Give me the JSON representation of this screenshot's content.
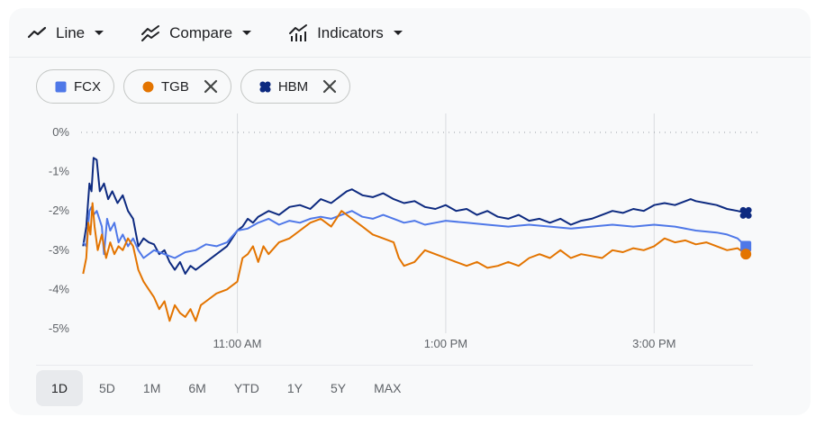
{
  "toolbar": {
    "line_label": "Line",
    "compare_label": "Compare",
    "indicators_label": "Indicators"
  },
  "chips": [
    {
      "symbol": "FCX",
      "color": "#4f78e8",
      "shape": "square",
      "removable": false
    },
    {
      "symbol": "TGB",
      "color": "#e37400",
      "shape": "circle",
      "removable": true
    },
    {
      "symbol": "HBM",
      "color": "#0d2a80",
      "shape": "clover",
      "removable": true
    }
  ],
  "ranges": [
    "1D",
    "5D",
    "1M",
    "6M",
    "YTD",
    "1Y",
    "5Y",
    "MAX"
  ],
  "active_range": "1D",
  "chart_data": {
    "type": "line",
    "x_unit": "hours",
    "x_range": [
      9.5,
      16
    ],
    "ylim": [
      -5,
      0
    ],
    "y_ticks": [
      0,
      -1,
      -2,
      -3,
      -4,
      -5
    ],
    "y_tick_labels": [
      "0%",
      "-1%",
      "-2%",
      "-3%",
      "-4%",
      "-5%"
    ],
    "x_ticks": [
      11,
      13,
      15
    ],
    "x_tick_labels": [
      "11:00 AM",
      "1:00 PM",
      "3:00 PM"
    ],
    "baseline": 0,
    "series": [
      {
        "name": "HBM",
        "color": "#0d2a80",
        "points": [
          [
            9.52,
            -2.9
          ],
          [
            9.55,
            -2.4
          ],
          [
            9.58,
            -1.3
          ],
          [
            9.6,
            -1.5
          ],
          [
            9.62,
            -0.65
          ],
          [
            9.65,
            -0.7
          ],
          [
            9.68,
            -1.5
          ],
          [
            9.72,
            -1.3
          ],
          [
            9.76,
            -1.7
          ],
          [
            9.8,
            -1.5
          ],
          [
            9.85,
            -1.8
          ],
          [
            9.9,
            -1.6
          ],
          [
            9.95,
            -2.0
          ],
          [
            10.0,
            -2.2
          ],
          [
            10.05,
            -2.9
          ],
          [
            10.1,
            -2.7
          ],
          [
            10.15,
            -2.8
          ],
          [
            10.2,
            -2.85
          ],
          [
            10.25,
            -3.1
          ],
          [
            10.3,
            -3.0
          ],
          [
            10.35,
            -3.3
          ],
          [
            10.4,
            -3.5
          ],
          [
            10.45,
            -3.3
          ],
          [
            10.5,
            -3.6
          ],
          [
            10.55,
            -3.4
          ],
          [
            10.6,
            -3.5
          ],
          [
            10.7,
            -3.3
          ],
          [
            10.8,
            -3.1
          ],
          [
            10.9,
            -2.9
          ],
          [
            10.95,
            -2.7
          ],
          [
            11.0,
            -2.5
          ],
          [
            11.05,
            -2.4
          ],
          [
            11.1,
            -2.2
          ],
          [
            11.15,
            -2.3
          ],
          [
            11.2,
            -2.15
          ],
          [
            11.3,
            -2.0
          ],
          [
            11.4,
            -2.1
          ],
          [
            11.5,
            -1.9
          ],
          [
            11.6,
            -1.85
          ],
          [
            11.7,
            -1.95
          ],
          [
            11.8,
            -1.7
          ],
          [
            11.9,
            -1.8
          ],
          [
            12.0,
            -1.6
          ],
          [
            12.05,
            -1.5
          ],
          [
            12.1,
            -1.45
          ],
          [
            12.2,
            -1.6
          ],
          [
            12.3,
            -1.65
          ],
          [
            12.4,
            -1.55
          ],
          [
            12.5,
            -1.7
          ],
          [
            12.6,
            -1.8
          ],
          [
            12.7,
            -1.75
          ],
          [
            12.8,
            -1.9
          ],
          [
            12.9,
            -1.95
          ],
          [
            13.0,
            -1.85
          ],
          [
            13.1,
            -2.0
          ],
          [
            13.2,
            -1.95
          ],
          [
            13.3,
            -2.1
          ],
          [
            13.4,
            -2.0
          ],
          [
            13.5,
            -2.15
          ],
          [
            13.6,
            -2.2
          ],
          [
            13.7,
            -2.1
          ],
          [
            13.8,
            -2.25
          ],
          [
            13.9,
            -2.2
          ],
          [
            14.0,
            -2.3
          ],
          [
            14.1,
            -2.2
          ],
          [
            14.2,
            -2.35
          ],
          [
            14.3,
            -2.25
          ],
          [
            14.4,
            -2.2
          ],
          [
            14.5,
            -2.1
          ],
          [
            14.6,
            -2.0
          ],
          [
            14.7,
            -2.05
          ],
          [
            14.8,
            -1.95
          ],
          [
            14.9,
            -2.0
          ],
          [
            15.0,
            -1.85
          ],
          [
            15.1,
            -1.8
          ],
          [
            15.2,
            -1.85
          ],
          [
            15.3,
            -1.75
          ],
          [
            15.35,
            -1.7
          ],
          [
            15.4,
            -1.75
          ],
          [
            15.5,
            -1.8
          ],
          [
            15.6,
            -1.85
          ],
          [
            15.7,
            -1.95
          ],
          [
            15.8,
            -2.0
          ],
          [
            15.88,
            -2.05
          ]
        ]
      },
      {
        "name": "FCX",
        "color": "#4f78e8",
        "points": [
          [
            9.52,
            -2.8
          ],
          [
            9.55,
            -2.9
          ],
          [
            9.58,
            -2.0
          ],
          [
            9.6,
            -1.9
          ],
          [
            9.62,
            -2.1
          ],
          [
            9.65,
            -2.0
          ],
          [
            9.7,
            -2.4
          ],
          [
            9.72,
            -3.1
          ],
          [
            9.75,
            -2.2
          ],
          [
            9.78,
            -2.5
          ],
          [
            9.82,
            -2.3
          ],
          [
            9.86,
            -2.8
          ],
          [
            9.9,
            -2.6
          ],
          [
            9.95,
            -2.9
          ],
          [
            10.0,
            -2.7
          ],
          [
            10.05,
            -3.0
          ],
          [
            10.1,
            -3.2
          ],
          [
            10.15,
            -3.1
          ],
          [
            10.2,
            -3.0
          ],
          [
            10.3,
            -3.1
          ],
          [
            10.4,
            -3.2
          ],
          [
            10.5,
            -3.05
          ],
          [
            10.6,
            -3.0
          ],
          [
            10.7,
            -2.85
          ],
          [
            10.8,
            -2.9
          ],
          [
            10.9,
            -2.8
          ],
          [
            11.0,
            -2.5
          ],
          [
            11.1,
            -2.45
          ],
          [
            11.2,
            -2.3
          ],
          [
            11.3,
            -2.2
          ],
          [
            11.4,
            -2.35
          ],
          [
            11.5,
            -2.25
          ],
          [
            11.6,
            -2.3
          ],
          [
            11.7,
            -2.2
          ],
          [
            11.8,
            -2.15
          ],
          [
            11.9,
            -2.2
          ],
          [
            12.0,
            -2.1
          ],
          [
            12.1,
            -2.0
          ],
          [
            12.2,
            -2.15
          ],
          [
            12.3,
            -2.2
          ],
          [
            12.4,
            -2.1
          ],
          [
            12.5,
            -2.2
          ],
          [
            12.6,
            -2.3
          ],
          [
            12.7,
            -2.25
          ],
          [
            12.8,
            -2.35
          ],
          [
            12.9,
            -2.3
          ],
          [
            13.0,
            -2.25
          ],
          [
            13.2,
            -2.3
          ],
          [
            13.4,
            -2.35
          ],
          [
            13.6,
            -2.4
          ],
          [
            13.8,
            -2.35
          ],
          [
            14.0,
            -2.4
          ],
          [
            14.2,
            -2.45
          ],
          [
            14.4,
            -2.4
          ],
          [
            14.6,
            -2.35
          ],
          [
            14.8,
            -2.4
          ],
          [
            15.0,
            -2.35
          ],
          [
            15.2,
            -2.4
          ],
          [
            15.4,
            -2.5
          ],
          [
            15.6,
            -2.55
          ],
          [
            15.7,
            -2.6
          ],
          [
            15.8,
            -2.7
          ],
          [
            15.88,
            -2.9
          ]
        ]
      },
      {
        "name": "TGB",
        "color": "#e37400",
        "points": [
          [
            9.52,
            -3.6
          ],
          [
            9.55,
            -3.2
          ],
          [
            9.57,
            -2.3
          ],
          [
            9.59,
            -2.6
          ],
          [
            9.61,
            -1.8
          ],
          [
            9.63,
            -2.4
          ],
          [
            9.66,
            -3.0
          ],
          [
            9.7,
            -2.6
          ],
          [
            9.74,
            -3.2
          ],
          [
            9.78,
            -2.8
          ],
          [
            9.82,
            -3.1
          ],
          [
            9.86,
            -2.9
          ],
          [
            9.9,
            -3.0
          ],
          [
            9.95,
            -2.7
          ],
          [
            10.0,
            -2.9
          ],
          [
            10.05,
            -3.5
          ],
          [
            10.1,
            -3.8
          ],
          [
            10.15,
            -4.0
          ],
          [
            10.2,
            -4.2
          ],
          [
            10.25,
            -4.5
          ],
          [
            10.3,
            -4.3
          ],
          [
            10.35,
            -4.8
          ],
          [
            10.4,
            -4.4
          ],
          [
            10.45,
            -4.6
          ],
          [
            10.5,
            -4.7
          ],
          [
            10.55,
            -4.5
          ],
          [
            10.6,
            -4.8
          ],
          [
            10.65,
            -4.4
          ],
          [
            10.7,
            -4.3
          ],
          [
            10.8,
            -4.1
          ],
          [
            10.9,
            -4.0
          ],
          [
            11.0,
            -3.8
          ],
          [
            11.05,
            -3.2
          ],
          [
            11.1,
            -3.1
          ],
          [
            11.15,
            -2.9
          ],
          [
            11.2,
            -3.3
          ],
          [
            11.25,
            -2.9
          ],
          [
            11.3,
            -3.1
          ],
          [
            11.4,
            -2.8
          ],
          [
            11.5,
            -2.7
          ],
          [
            11.6,
            -2.5
          ],
          [
            11.7,
            -2.3
          ],
          [
            11.8,
            -2.2
          ],
          [
            11.9,
            -2.4
          ],
          [
            12.0,
            -2.0
          ],
          [
            12.1,
            -2.2
          ],
          [
            12.2,
            -2.4
          ],
          [
            12.3,
            -2.6
          ],
          [
            12.4,
            -2.7
          ],
          [
            12.5,
            -2.8
          ],
          [
            12.55,
            -3.2
          ],
          [
            12.6,
            -3.4
          ],
          [
            12.7,
            -3.3
          ],
          [
            12.8,
            -3.0
          ],
          [
            12.9,
            -3.1
          ],
          [
            13.0,
            -3.2
          ],
          [
            13.1,
            -3.3
          ],
          [
            13.2,
            -3.4
          ],
          [
            13.3,
            -3.3
          ],
          [
            13.4,
            -3.45
          ],
          [
            13.5,
            -3.4
          ],
          [
            13.6,
            -3.3
          ],
          [
            13.7,
            -3.4
          ],
          [
            13.8,
            -3.2
          ],
          [
            13.9,
            -3.1
          ],
          [
            14.0,
            -3.2
          ],
          [
            14.1,
            -3.0
          ],
          [
            14.2,
            -3.2
          ],
          [
            14.3,
            -3.1
          ],
          [
            14.4,
            -3.15
          ],
          [
            14.5,
            -3.2
          ],
          [
            14.6,
            -3.0
          ],
          [
            14.7,
            -3.05
          ],
          [
            14.8,
            -2.95
          ],
          [
            14.9,
            -3.0
          ],
          [
            15.0,
            -2.9
          ],
          [
            15.1,
            -2.7
          ],
          [
            15.2,
            -2.8
          ],
          [
            15.3,
            -2.75
          ],
          [
            15.4,
            -2.85
          ],
          [
            15.5,
            -2.8
          ],
          [
            15.6,
            -2.9
          ],
          [
            15.7,
            -3.0
          ],
          [
            15.8,
            -2.95
          ],
          [
            15.88,
            -3.1
          ]
        ]
      }
    ]
  }
}
